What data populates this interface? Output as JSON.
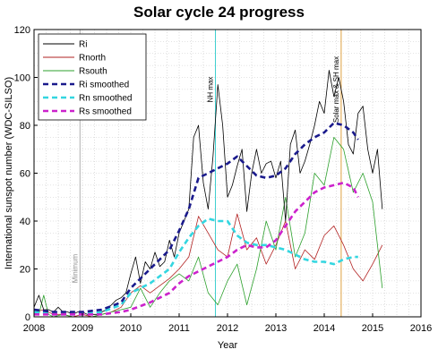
{
  "chart_data": {
    "type": "line",
    "title": "Solar cycle 24 progress",
    "xlabel": "Year",
    "ylabel": "International sunspot number (WDC-SILSO)",
    "xlim": [
      2008,
      2016
    ],
    "ylim": [
      0,
      120
    ],
    "x_ticks": [
      "2008",
      "2009",
      "2010",
      "2011",
      "2012",
      "2013",
      "2014",
      "2015",
      "2016"
    ],
    "y_ticks": [
      "0",
      "20",
      "40",
      "60",
      "80",
      "100",
      "120"
    ],
    "grid": true,
    "legend_position": "top-left",
    "colors": {
      "ri": "#000000",
      "rnorth": "#b22222",
      "rsouth": "#2ca02c",
      "ri_smoothed": "#1a1a8c",
      "rn_smoothed": "#33d6e0",
      "rs_smoothed": "#cc22cc",
      "nh_max_line": "#40d0d0",
      "sh_max_line": "#e0a040",
      "minimum_line": "#b0b0b0"
    },
    "vertical_markers": [
      {
        "x": 2008.95,
        "label": "Minimum"
      },
      {
        "x": 2011.75,
        "label": "NH max"
      },
      {
        "x": 2014.35,
        "label": "Solar max & SH max"
      }
    ],
    "series": [
      {
        "name": "Ri",
        "style": "solid",
        "x": [
          2008.0,
          2008.1,
          2008.2,
          2008.3,
          2008.4,
          2008.5,
          2008.6,
          2008.7,
          2008.8,
          2008.9,
          2009.0,
          2009.1,
          2009.2,
          2009.3,
          2009.4,
          2009.5,
          2009.6,
          2009.7,
          2009.8,
          2009.9,
          2010.0,
          2010.1,
          2010.2,
          2010.3,
          2010.4,
          2010.5,
          2010.6,
          2010.7,
          2010.8,
          2010.9,
          2011.0,
          2011.1,
          2011.2,
          2011.3,
          2011.4,
          2011.5,
          2011.6,
          2011.7,
          2011.8,
          2011.9,
          2012.0,
          2012.1,
          2012.2,
          2012.3,
          2012.4,
          2012.5,
          2012.6,
          2012.7,
          2012.8,
          2012.9,
          2013.0,
          2013.1,
          2013.2,
          2013.3,
          2013.4,
          2013.5,
          2013.6,
          2013.7,
          2013.8,
          2013.9,
          2014.0,
          2014.1,
          2014.2,
          2014.3,
          2014.4,
          2014.5,
          2014.6,
          2014.7,
          2014.8,
          2014.9,
          2015.0,
          2015.1,
          2015.2
        ],
        "values": [
          4,
          9,
          3,
          3,
          2,
          4,
          2,
          2,
          1,
          2,
          2,
          1,
          1,
          1,
          2,
          3,
          5,
          7,
          8,
          10,
          18,
          25,
          14,
          23,
          20,
          27,
          21,
          23,
          32,
          25,
          35,
          40,
          45,
          75,
          80,
          56,
          45,
          67,
          97,
          80,
          50,
          55,
          63,
          70,
          44,
          60,
          70,
          60,
          64,
          65,
          58,
          65,
          40,
          72,
          78,
          60,
          65,
          72,
          80,
          90,
          85,
          103,
          92,
          100,
          90,
          72,
          68,
          85,
          88,
          70,
          60,
          70,
          45
        ]
      },
      {
        "name": "Rnorth",
        "style": "solid",
        "x": [
          2008.0,
          2008.2,
          2008.4,
          2008.6,
          2008.8,
          2009.0,
          2009.2,
          2009.4,
          2009.6,
          2009.8,
          2010.0,
          2010.2,
          2010.4,
          2010.6,
          2010.8,
          2011.0,
          2011.2,
          2011.4,
          2011.6,
          2011.8,
          2012.0,
          2012.2,
          2012.4,
          2012.6,
          2012.8,
          2013.0,
          2013.2,
          2013.4,
          2013.6,
          2013.8,
          2014.0,
          2014.2,
          2014.4,
          2014.6,
          2014.8,
          2015.0,
          2015.2
        ],
        "values": [
          2,
          3,
          1,
          1,
          0,
          1,
          0,
          1,
          2,
          4,
          10,
          13,
          10,
          13,
          16,
          20,
          25,
          42,
          35,
          28,
          25,
          43,
          28,
          33,
          22,
          30,
          40,
          20,
          28,
          24,
          34,
          38,
          30,
          20,
          15,
          22,
          30
        ]
      },
      {
        "name": "Rsouth",
        "style": "solid",
        "x": [
          2008.0,
          2008.1,
          2008.2,
          2008.3,
          2008.4,
          2008.6,
          2008.8,
          2009.0,
          2009.2,
          2009.4,
          2009.6,
          2009.8,
          2010.0,
          2010.2,
          2010.4,
          2010.6,
          2010.8,
          2011.0,
          2011.2,
          2011.4,
          2011.6,
          2011.8,
          2012.0,
          2012.2,
          2012.4,
          2012.6,
          2012.8,
          2013.0,
          2013.2,
          2013.4,
          2013.6,
          2013.8,
          2014.0,
          2014.2,
          2014.4,
          2014.6,
          2014.8,
          2015.0,
          2015.2
        ],
        "values": [
          2,
          1,
          9,
          1,
          0,
          1,
          0,
          0,
          0,
          1,
          2,
          3,
          4,
          12,
          4,
          10,
          15,
          18,
          15,
          25,
          10,
          5,
          15,
          22,
          5,
          20,
          40,
          28,
          50,
          25,
          35,
          60,
          55,
          75,
          70,
          52,
          60,
          48,
          12
        ]
      },
      {
        "name": "Ri smoothed",
        "style": "dashed",
        "x": [
          2008.0,
          2008.4,
          2008.8,
          2009.0,
          2009.4,
          2009.8,
          2010.0,
          2010.4,
          2010.8,
          2011.0,
          2011.2,
          2011.4,
          2011.6,
          2011.8,
          2012.0,
          2012.2,
          2012.4,
          2012.6,
          2012.8,
          2013.0,
          2013.2,
          2013.4,
          2013.6,
          2013.8,
          2014.0,
          2014.2,
          2014.4,
          2014.6,
          2014.7
        ],
        "values": [
          3,
          2,
          2,
          2,
          3,
          6,
          12,
          20,
          28,
          36,
          45,
          58,
          60,
          62,
          64,
          67,
          63,
          59,
          58,
          59,
          62,
          68,
          72,
          75,
          77,
          81,
          80,
          77,
          74
        ]
      },
      {
        "name": "Rn smoothed",
        "style": "dashed",
        "x": [
          2008.0,
          2008.4,
          2008.8,
          2009.0,
          2009.4,
          2009.8,
          2010.0,
          2010.4,
          2010.8,
          2011.0,
          2011.2,
          2011.4,
          2011.6,
          2011.8,
          2012.0,
          2012.2,
          2012.4,
          2012.6,
          2012.8,
          2013.0,
          2013.2,
          2013.4,
          2013.6,
          2013.8,
          2014.0,
          2014.2,
          2014.4,
          2014.6,
          2014.7
        ],
        "values": [
          2,
          1,
          1,
          1,
          2,
          5,
          10,
          14,
          20,
          27,
          33,
          38,
          41,
          40,
          40,
          34,
          31,
          30,
          30,
          29,
          28,
          26,
          24,
          23,
          23,
          22,
          24,
          25,
          25
        ]
      },
      {
        "name": "Rs smoothed",
        "style": "dashed",
        "x": [
          2008.0,
          2008.4,
          2008.8,
          2009.0,
          2009.4,
          2009.8,
          2010.0,
          2010.4,
          2010.8,
          2011.0,
          2011.2,
          2011.4,
          2011.6,
          2011.8,
          2012.0,
          2012.2,
          2012.4,
          2012.6,
          2012.8,
          2013.0,
          2013.2,
          2013.4,
          2013.6,
          2013.8,
          2014.0,
          2014.2,
          2014.4,
          2014.6,
          2014.7
        ],
        "values": [
          1,
          1,
          1,
          1,
          1,
          2,
          3,
          6,
          10,
          14,
          17,
          19,
          21,
          23,
          25,
          28,
          30,
          29,
          29,
          32,
          38,
          44,
          48,
          52,
          54,
          55,
          56,
          54,
          50
        ]
      }
    ]
  }
}
